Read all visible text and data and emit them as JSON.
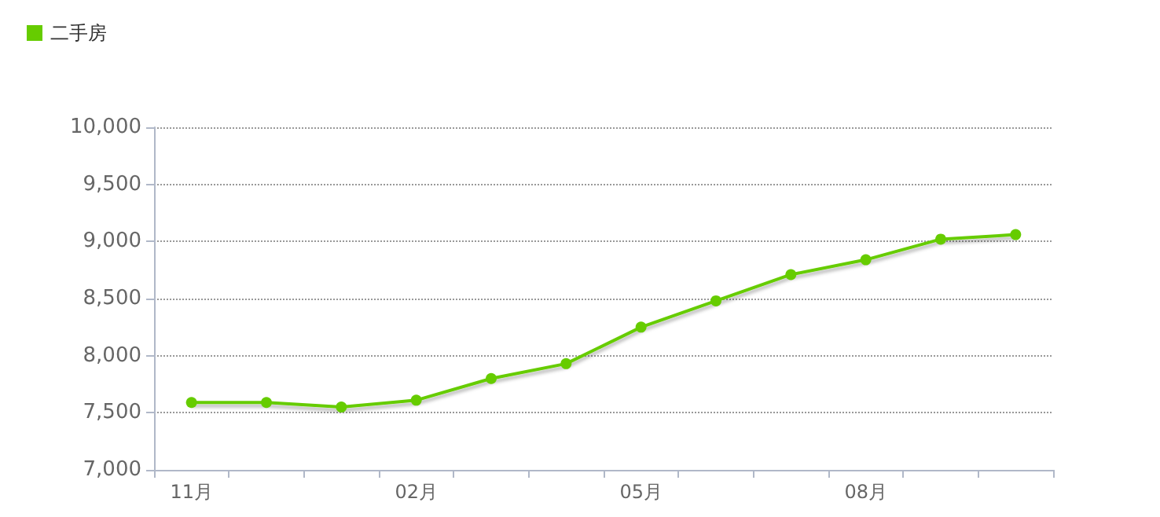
{
  "chart_data": {
    "type": "line",
    "categories": [
      "11月",
      null,
      null,
      "02月",
      null,
      null,
      "05月",
      null,
      null,
      "08月",
      null,
      null
    ],
    "series": [
      {
        "name": "二手房",
        "color": "#66cc00",
        "values": [
          7590,
          7590,
          7550,
          7610,
          7800,
          7930,
          8250,
          8480,
          8710,
          8840,
          9020,
          9060
        ]
      }
    ],
    "ylim": [
      7000,
      10000
    ],
    "yticks": [
      {
        "value": 7000,
        "label": "7,000"
      },
      {
        "value": 7500,
        "label": "7,500"
      },
      {
        "value": 8000,
        "label": "8,000"
      },
      {
        "value": 8500,
        "label": "8,500"
      },
      {
        "value": 9000,
        "label": "9,000"
      },
      {
        "value": 9500,
        "label": "9,500"
      },
      {
        "value": 10000,
        "label": "10,000"
      }
    ],
    "grid": "y",
    "legend": "top left",
    "marker": "circle",
    "line_style": "solid"
  }
}
